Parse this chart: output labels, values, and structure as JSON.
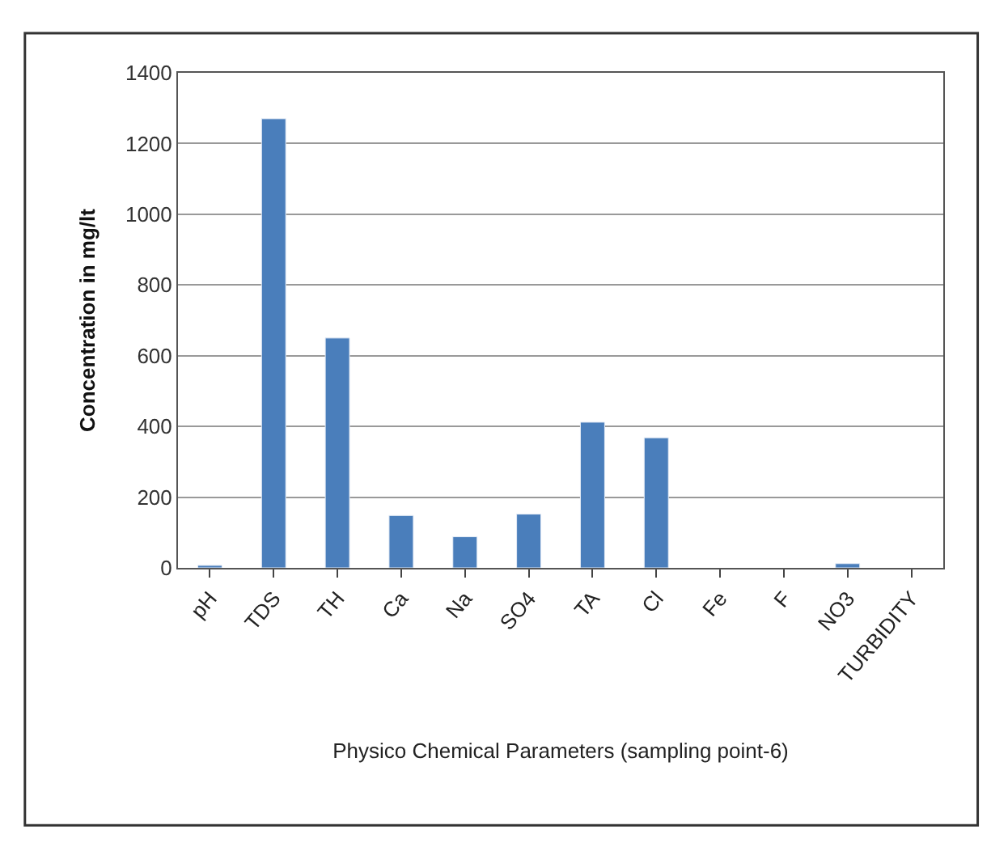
{
  "chart_data": {
    "type": "bar",
    "xlabel": "Physico Chemical Parameters (sampling point-6)",
    "ylabel": "Concentration in mg/lt",
    "categories": [
      "pH",
      "TDS",
      "TH",
      "Ca",
      "Na",
      "SO4",
      "TA",
      "Cl",
      "Fe",
      "F",
      "NO3",
      "TURBIDITY"
    ],
    "values": [
      7,
      1270,
      650,
      148,
      88,
      152,
      412,
      368,
      null,
      null,
      12,
      null
    ],
    "color": "#4a7ebb",
    "ylim": [
      0,
      1400
    ],
    "yticks": [
      0,
      200,
      400,
      600,
      800,
      1000,
      1200,
      1400
    ],
    "grid": "y",
    "legend": false
  }
}
